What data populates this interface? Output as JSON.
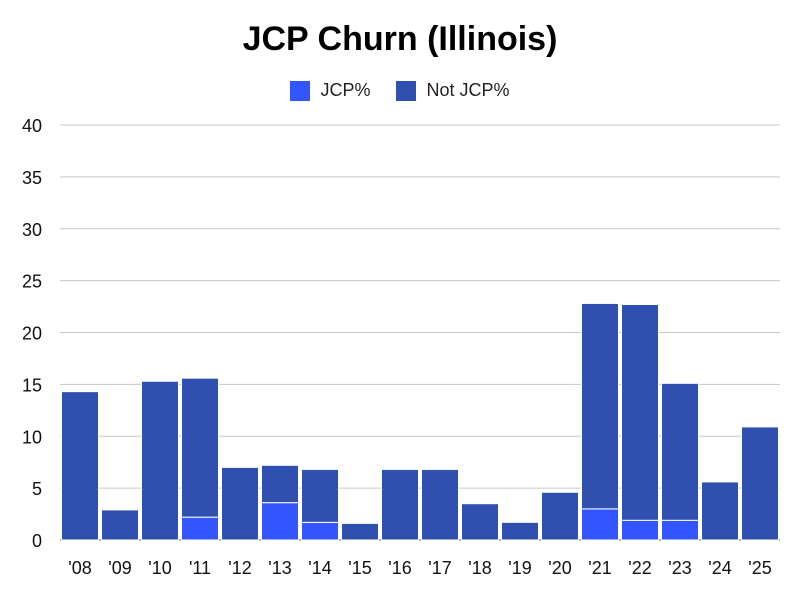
{
  "chart_data": {
    "type": "bar",
    "stacked": true,
    "title": "JCP Churn (Illinois)",
    "xlabel": "",
    "ylabel": "",
    "categories": [
      "'08",
      "'09",
      "'10",
      "'11",
      "'12",
      "'13",
      "'14",
      "'15",
      "'16",
      "'17",
      "'18",
      "'19",
      "'20",
      "'21",
      "'22",
      "'23",
      "'24",
      "'25"
    ],
    "series": [
      {
        "name": "JCP%",
        "color": "#3355ff",
        "values": [
          0,
          0,
          0,
          2.2,
          0,
          3.6,
          1.7,
          0,
          0,
          0,
          0,
          0,
          0,
          3.0,
          1.9,
          1.9,
          0,
          0
        ]
      },
      {
        "name": "Not JCP%",
        "color": "#3050b0",
        "values": [
          14.3,
          2.9,
          15.3,
          13.4,
          7.0,
          3.6,
          5.1,
          1.6,
          6.8,
          6.8,
          3.5,
          1.7,
          4.6,
          19.8,
          20.8,
          13.2,
          5.6,
          10.9
        ]
      }
    ],
    "ylim": [
      0,
      40
    ],
    "yticks": [
      0,
      5,
      10,
      15,
      20,
      25,
      30,
      35,
      40
    ],
    "grid": true,
    "legend_position": "top-center"
  }
}
